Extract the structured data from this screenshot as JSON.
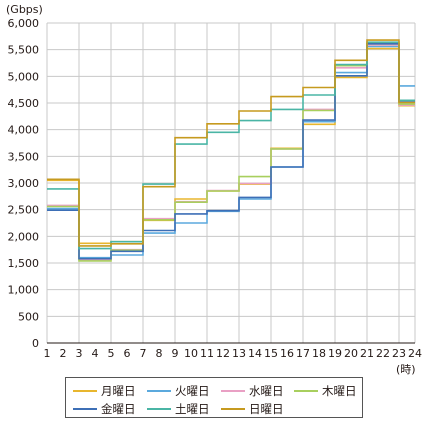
{
  "chart_data": {
    "type": "line",
    "step": true,
    "y_unit": "(Gbps)",
    "x_unit": "(時)",
    "x_ticks": [
      "1",
      "2",
      "3",
      "4",
      "5",
      "6",
      "7",
      "8",
      "9",
      "10",
      "11",
      "12",
      "13",
      "14",
      "15",
      "16",
      "17",
      "18",
      "19",
      "20",
      "21",
      "22",
      "23",
      "24"
    ],
    "y_ticks": [
      "0",
      "500",
      "1,000",
      "1,500",
      "2,000",
      "2,500",
      "3,000",
      "3,500",
      "4,000",
      "4,500",
      "5,000",
      "5,500",
      "6,000"
    ],
    "ylim": [
      0,
      6000
    ],
    "grid": true,
    "legend_position": "bottom",
    "x_bins": [
      1,
      3,
      5,
      7,
      9,
      11,
      13,
      15,
      17,
      19,
      21,
      23
    ],
    "series": [
      {
        "name": "月曜日",
        "color": "#e8b62e",
        "values": [
          3050,
          1870,
          1900,
          2300,
          2700,
          2850,
          2980,
          3650,
          4100,
          4980,
          5520,
          4450
        ]
      },
      {
        "name": "火曜日",
        "color": "#5ba9dd",
        "values": [
          2520,
          1600,
          1650,
          2060,
          2250,
          2470,
          2700,
          3300,
          4150,
          5070,
          5560,
          4820
        ]
      },
      {
        "name": "水曜日",
        "color": "#e9a0c4",
        "values": [
          2580,
          1560,
          1750,
          2330,
          2650,
          2860,
          2990,
          3640,
          4380,
          5160,
          5590,
          4460
        ]
      },
      {
        "name": "木曜日",
        "color": "#a8cf5e",
        "values": [
          2560,
          1540,
          1740,
          2310,
          2640,
          2850,
          3120,
          3640,
          4360,
          5200,
          5610,
          4480
        ]
      },
      {
        "name": "金曜日",
        "color": "#3d6fb6",
        "values": [
          2490,
          1580,
          1720,
          2110,
          2420,
          2480,
          2730,
          3300,
          4180,
          5010,
          5610,
          4540
        ]
      },
      {
        "name": "土曜日",
        "color": "#4ab5a5",
        "values": [
          2890,
          1770,
          1900,
          2980,
          3730,
          3950,
          4170,
          4380,
          4650,
          5220,
          5640,
          4550
        ]
      },
      {
        "name": "日曜日",
        "color": "#c69a1f",
        "values": [
          3070,
          1820,
          1860,
          2930,
          3850,
          4110,
          4350,
          4620,
          4790,
          5300,
          5680,
          4510
        ]
      }
    ]
  }
}
